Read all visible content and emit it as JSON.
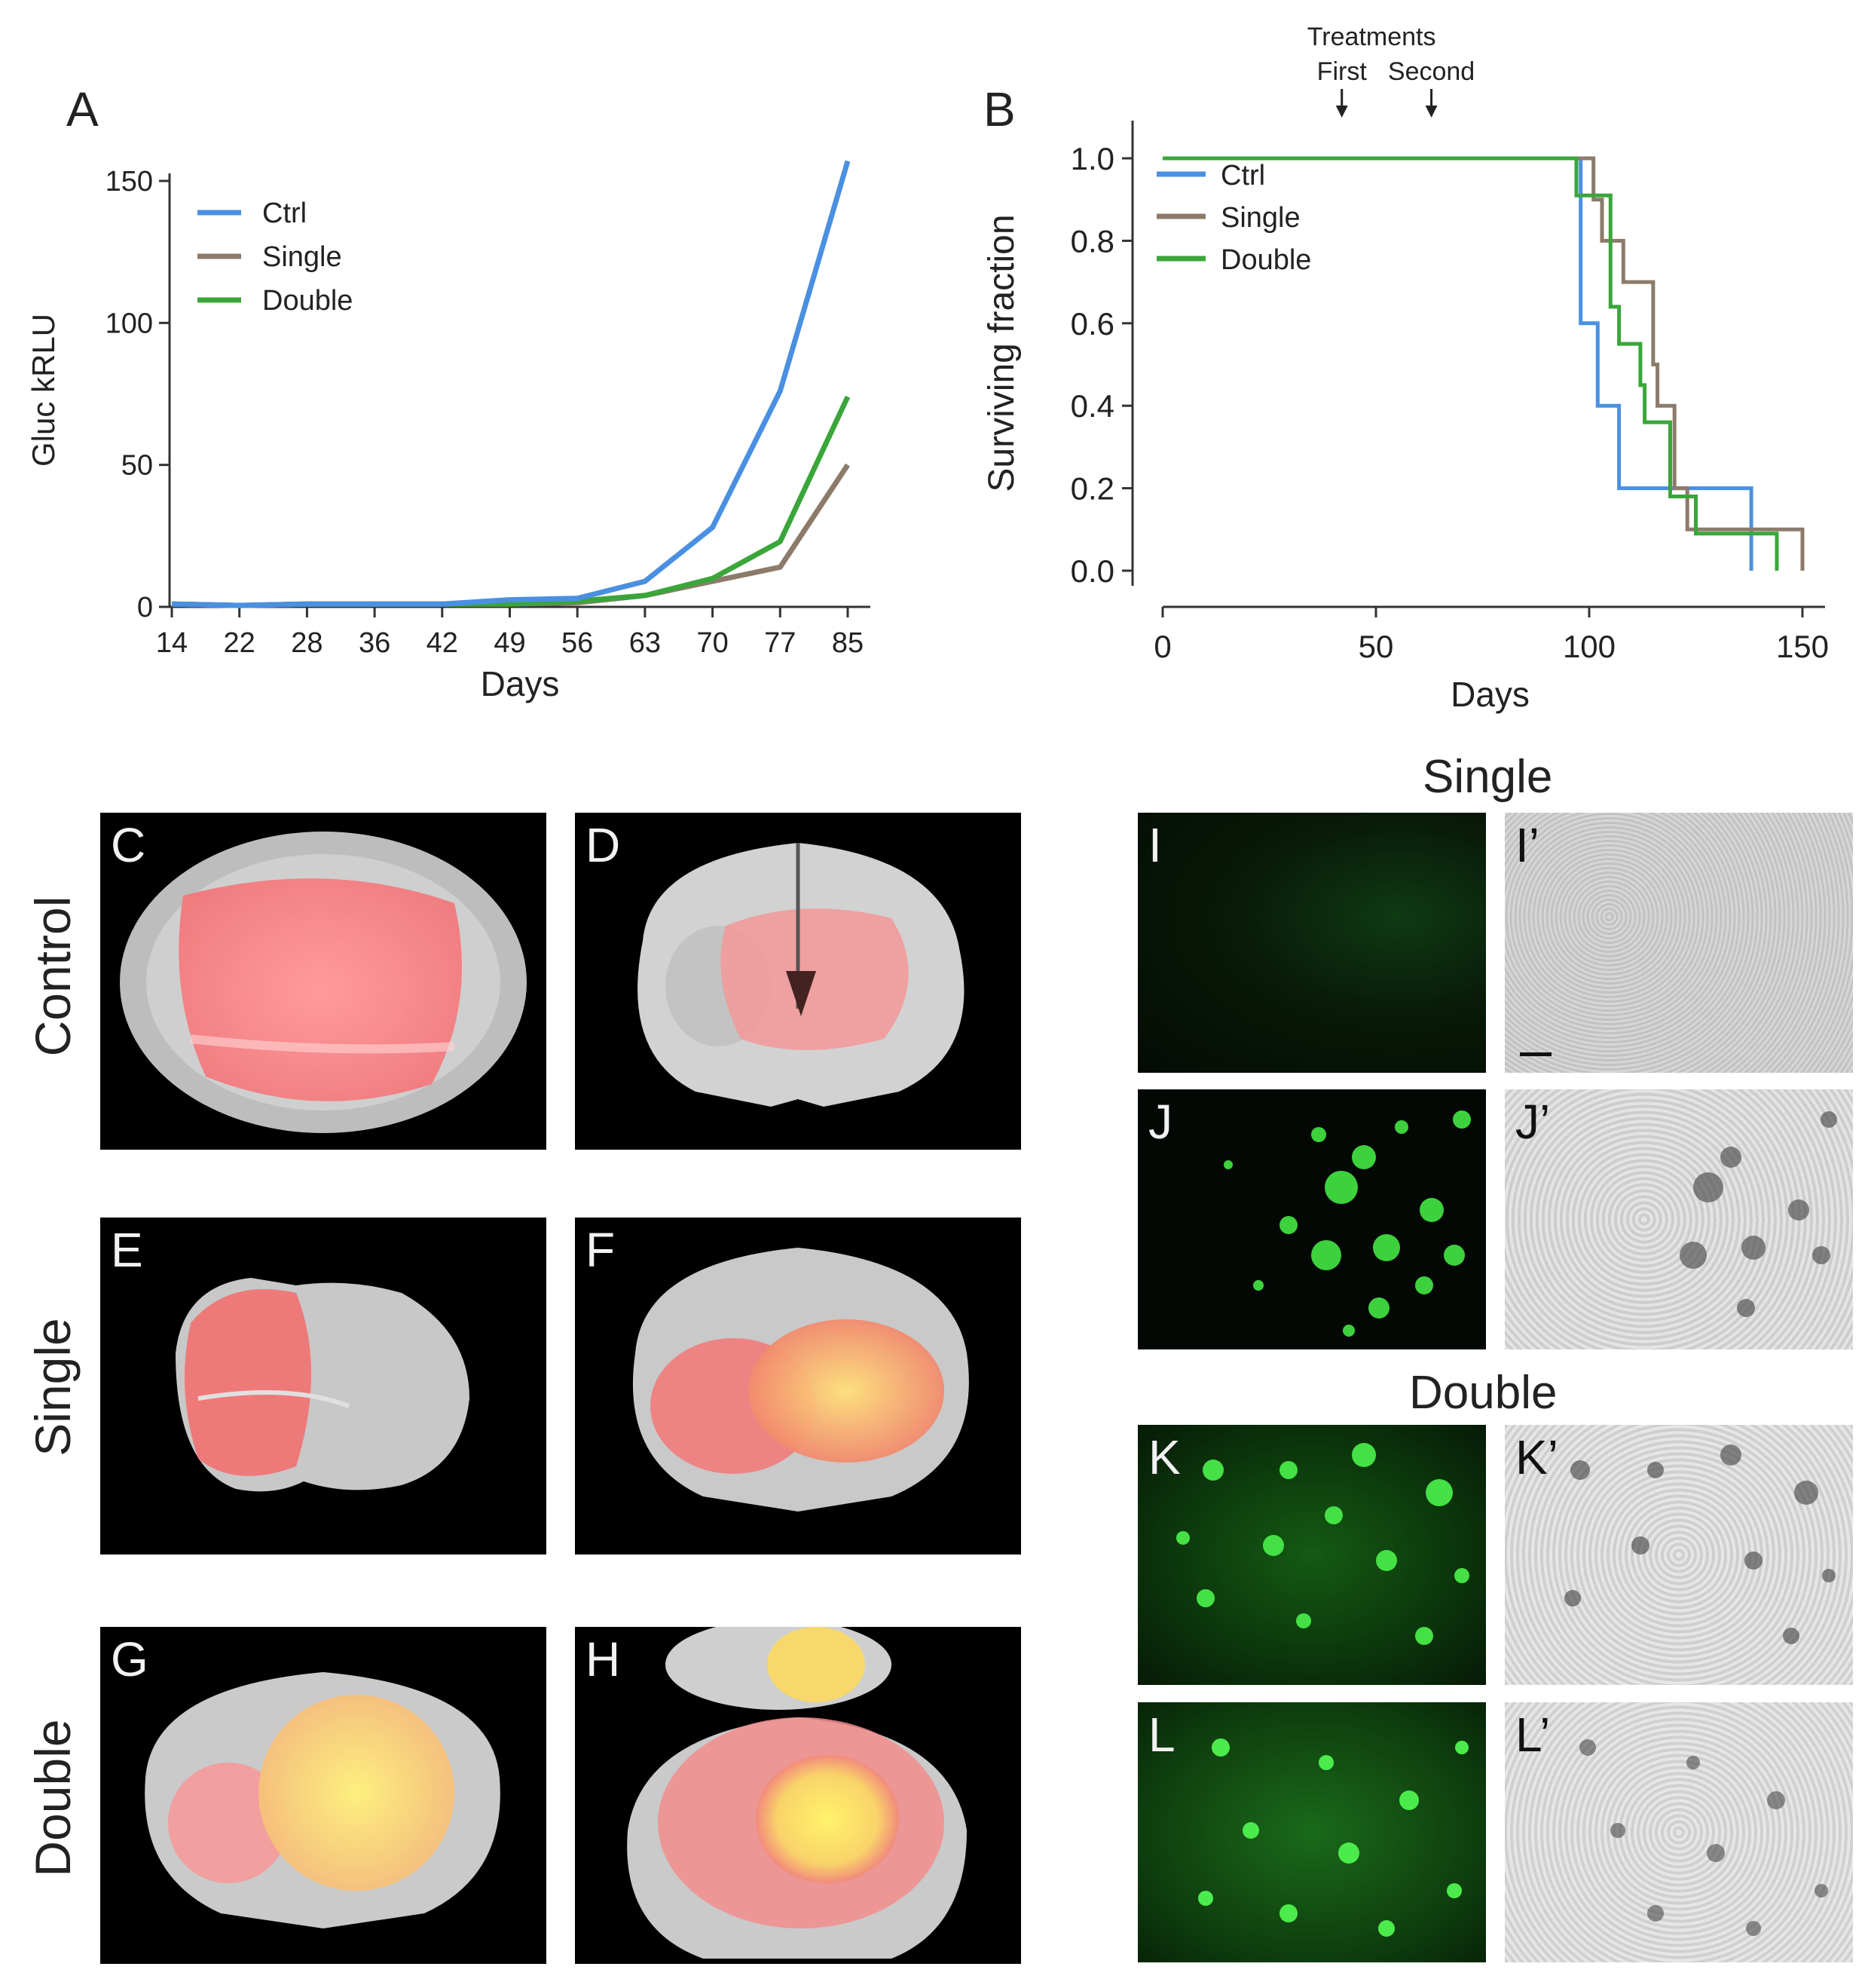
{
  "panel_letters": {
    "A": "A",
    "B": "B"
  },
  "colors": {
    "ctrl": "#4a90e2",
    "single": "#8c7b6b",
    "double": "#3aa63a"
  },
  "chart_data": [
    {
      "panel": "A",
      "type": "line",
      "xlabel": "Days",
      "ylabel": "Gluc kRLU",
      "categories": [
        "14",
        "22",
        "28",
        "36",
        "42",
        "49",
        "56",
        "63",
        "70",
        "77",
        "85"
      ],
      "ylim": [
        0,
        150
      ],
      "yticks": [
        0,
        50,
        100,
        150
      ],
      "legend_position": "top-left",
      "series": [
        {
          "name": "Ctrl",
          "color": "#4a90e2",
          "values": [
            1,
            0.5,
            1,
            1,
            1,
            2.5,
            3,
            9,
            28,
            76,
            157
          ]
        },
        {
          "name": "Single",
          "color": "#8c7b6b",
          "values": [
            1,
            0.5,
            1,
            1,
            1,
            1,
            1.5,
            4,
            9,
            14,
            50
          ]
        },
        {
          "name": "Double",
          "color": "#3aa63a",
          "values": [
            1,
            0.5,
            1,
            1,
            1,
            1,
            2,
            4,
            10,
            23,
            74
          ]
        }
      ]
    },
    {
      "panel": "B",
      "type": "line",
      "subtype": "kaplan-meier",
      "xlabel": "Days",
      "ylabel": "Surviving fraction",
      "xlim": [
        0,
        150
      ],
      "xticks": [
        0,
        50,
        100,
        150
      ],
      "ylim": [
        0,
        1
      ],
      "yticks": [
        "0.0",
        "0.2",
        "0.4",
        "0.6",
        "0.8",
        "1.0"
      ],
      "legend_position": "top-left",
      "annotations": {
        "heading": "Treatments",
        "markers": [
          {
            "label": "First",
            "day": 42
          },
          {
            "label": "Second",
            "day": 63
          }
        ]
      },
      "series": [
        {
          "name": "Ctrl",
          "color": "#4a90e2",
          "steps": [
            [
              0,
              1.0
            ],
            [
              98,
              1.0
            ],
            [
              98,
              0.6
            ],
            [
              102,
              0.6
            ],
            [
              102,
              0.4
            ],
            [
              107,
              0.4
            ],
            [
              107,
              0.2
            ],
            [
              138,
              0.2
            ],
            [
              138,
              0.0
            ]
          ]
        },
        {
          "name": "Single",
          "color": "#8c7b6b",
          "steps": [
            [
              0,
              1.0
            ],
            [
              101,
              1.0
            ],
            [
              101,
              0.9
            ],
            [
              103,
              0.9
            ],
            [
              103,
              0.8
            ],
            [
              108,
              0.8
            ],
            [
              108,
              0.7
            ],
            [
              115,
              0.7
            ],
            [
              115,
              0.5
            ],
            [
              116,
              0.5
            ],
            [
              116,
              0.4
            ],
            [
              120,
              0.4
            ],
            [
              120,
              0.2
            ],
            [
              123,
              0.2
            ],
            [
              123,
              0.1
            ],
            [
              150,
              0.1
            ],
            [
              150,
              0.0
            ]
          ]
        },
        {
          "name": "Double",
          "color": "#3aa63a",
          "steps": [
            [
              0,
              1.0
            ],
            [
              97,
              1.0
            ],
            [
              97,
              0.91
            ],
            [
              105,
              0.91
            ],
            [
              105,
              0.64
            ],
            [
              107,
              0.64
            ],
            [
              107,
              0.55
            ],
            [
              112,
              0.55
            ],
            [
              112,
              0.45
            ],
            [
              113,
              0.45
            ],
            [
              113,
              0.36
            ],
            [
              119,
              0.36
            ],
            [
              119,
              0.18
            ],
            [
              125,
              0.18
            ],
            [
              125,
              0.09
            ],
            [
              144,
              0.09
            ],
            [
              144,
              0.0
            ]
          ]
        }
      ]
    }
  ],
  "brain_panels": {
    "row_labels": [
      "Control",
      "Single",
      "Double"
    ],
    "letters": [
      "C",
      "D",
      "E",
      "F",
      "G",
      "H"
    ]
  },
  "micro_panels": {
    "single_title": "Single",
    "double_title": "Double",
    "letters": [
      "I",
      "I’",
      "J",
      "J’",
      "K",
      "K’",
      "L",
      "L’"
    ]
  }
}
